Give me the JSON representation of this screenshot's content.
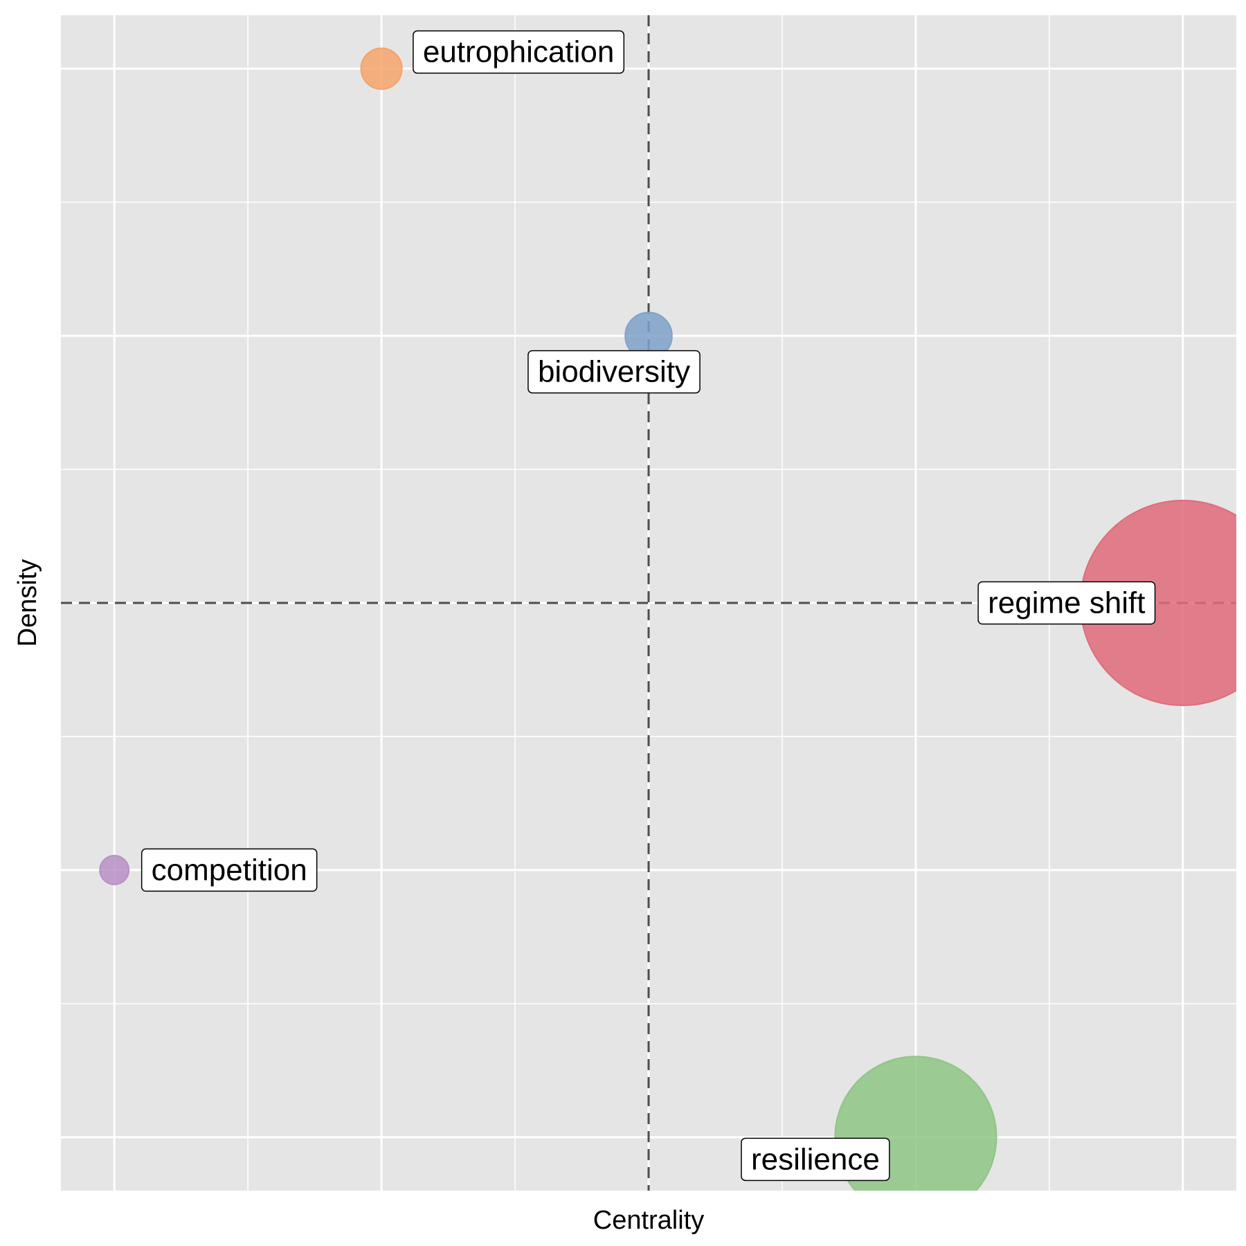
{
  "chart_data": {
    "type": "scatter",
    "xlabel": "Centrality",
    "ylabel": "Density",
    "xlim": [
      -0.2,
      4.2
    ],
    "ylim": [
      -0.2,
      4.2
    ],
    "gridlines": [
      0,
      0.5,
      1,
      1.5,
      2,
      2.5,
      3,
      3.5,
      4
    ],
    "grid": true,
    "reference_lines": {
      "x": 2,
      "y": 2,
      "style": "dashed"
    },
    "points": [
      {
        "label": "eutrophication",
        "x": 1,
        "y": 4,
        "size": 1,
        "color": "#f4a46a"
      },
      {
        "label": "biodiversity",
        "x": 2,
        "y": 3,
        "size": 1.3,
        "color": "#7ea2c9"
      },
      {
        "label": "regime shift",
        "x": 4,
        "y": 2,
        "size": 25,
        "color": "#e06b7b"
      },
      {
        "label": "competition",
        "x": 0,
        "y": 1,
        "size": 0.5,
        "color": "#b98fc4"
      },
      {
        "label": "resilience",
        "x": 3,
        "y": 0,
        "size": 15.5,
        "color": "#8ec585"
      }
    ]
  }
}
